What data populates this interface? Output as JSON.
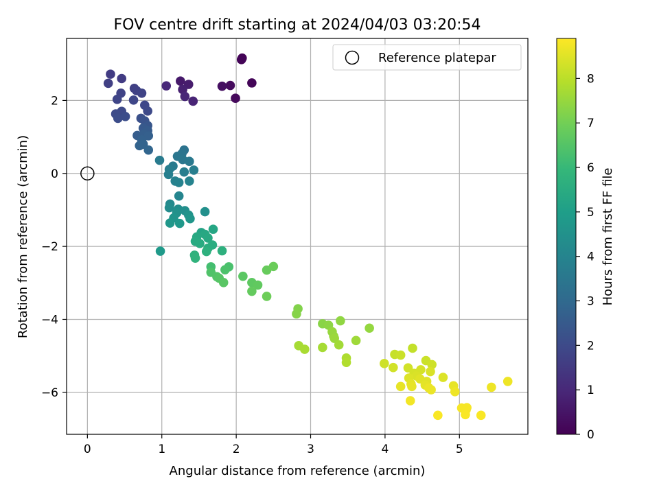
{
  "chart_data": {
    "type": "scatter",
    "title": "FOV centre drift starting at 2024/04/03 03:20:54",
    "xlabel": "Angular distance from reference (arcmin)",
    "ylabel": "Rotation from reference (arcmin)",
    "xlim": [
      -0.28,
      5.92
    ],
    "ylim": [
      -7.15,
      3.7
    ],
    "xticks": [
      0,
      1,
      2,
      3,
      4,
      5
    ],
    "yticks": [
      -6,
      -4,
      -2,
      0,
      2
    ],
    "xtick_labels": [
      "0",
      "1",
      "2",
      "3",
      "4",
      "5"
    ],
    "ytick_labels": [
      "−6",
      "−4",
      "−2",
      "0",
      "2"
    ],
    "grid": true,
    "legend": {
      "location": "top-right",
      "label": "Reference platepar"
    },
    "reference_point": {
      "x": 0,
      "y": 0
    },
    "colorbar": {
      "label": "Hours from first FF file",
      "colormap": "viridis",
      "min": 0,
      "max": 8.9,
      "ticks": [
        0,
        1,
        2,
        3,
        4,
        5,
        6,
        7,
        8
      ],
      "tick_labels": [
        "0",
        "1",
        "2",
        "3",
        "4",
        "5",
        "6",
        "7",
        "8"
      ]
    },
    "points": [
      {
        "x": 2.08,
        "y": 3.16,
        "c": 0.05
      },
      {
        "x": 2.07,
        "y": 3.12,
        "c": 0.08
      },
      {
        "x": 2.21,
        "y": 2.48,
        "c": 0.12
      },
      {
        "x": 1.99,
        "y": 2.06,
        "c": 0.2
      },
      {
        "x": 1.92,
        "y": 2.41,
        "c": 0.25
      },
      {
        "x": 1.81,
        "y": 2.39,
        "c": 0.35
      },
      {
        "x": 1.25,
        "y": 2.53,
        "c": 0.6
      },
      {
        "x": 1.36,
        "y": 2.44,
        "c": 0.7
      },
      {
        "x": 1.28,
        "y": 2.3,
        "c": 0.8
      },
      {
        "x": 1.42,
        "y": 1.98,
        "c": 0.9
      },
      {
        "x": 1.31,
        "y": 2.11,
        "c": 0.95
      },
      {
        "x": 1.06,
        "y": 2.4,
        "c": 1.0
      },
      {
        "x": 0.31,
        "y": 2.72,
        "c": 1.6
      },
      {
        "x": 0.46,
        "y": 2.6,
        "c": 1.6
      },
      {
        "x": 0.28,
        "y": 2.47,
        "c": 1.7
      },
      {
        "x": 0.63,
        "y": 2.33,
        "c": 1.7
      },
      {
        "x": 0.66,
        "y": 2.27,
        "c": 1.75
      },
      {
        "x": 0.45,
        "y": 2.2,
        "c": 1.8
      },
      {
        "x": 0.73,
        "y": 2.2,
        "c": 1.8
      },
      {
        "x": 0.4,
        "y": 2.03,
        "c": 1.85
      },
      {
        "x": 0.62,
        "y": 2.01,
        "c": 1.9
      },
      {
        "x": 0.77,
        "y": 1.87,
        "c": 1.95
      },
      {
        "x": 0.81,
        "y": 1.71,
        "c": 2.0
      },
      {
        "x": 0.46,
        "y": 1.7,
        "c": 2.0
      },
      {
        "x": 0.38,
        "y": 1.63,
        "c": 2.05
      },
      {
        "x": 0.51,
        "y": 1.56,
        "c": 2.1
      },
      {
        "x": 0.41,
        "y": 1.51,
        "c": 2.1
      },
      {
        "x": 0.72,
        "y": 1.51,
        "c": 2.2
      },
      {
        "x": 0.77,
        "y": 1.44,
        "c": 2.3
      },
      {
        "x": 0.81,
        "y": 1.31,
        "c": 2.4
      },
      {
        "x": 0.75,
        "y": 1.24,
        "c": 2.5
      },
      {
        "x": 0.81,
        "y": 1.17,
        "c": 2.55
      },
      {
        "x": 0.67,
        "y": 1.04,
        "c": 2.6
      },
      {
        "x": 0.76,
        "y": 1.08,
        "c": 2.65
      },
      {
        "x": 0.82,
        "y": 1.03,
        "c": 2.7
      },
      {
        "x": 0.73,
        "y": 0.92,
        "c": 2.75
      },
      {
        "x": 0.7,
        "y": 0.76,
        "c": 2.8
      },
      {
        "x": 0.75,
        "y": 0.8,
        "c": 2.85
      },
      {
        "x": 0.82,
        "y": 0.64,
        "c": 2.9
      },
      {
        "x": 1.3,
        "y": 0.64,
        "c": 3.4
      },
      {
        "x": 1.27,
        "y": 0.54,
        "c": 3.45
      },
      {
        "x": 1.21,
        "y": 0.47,
        "c": 3.5
      },
      {
        "x": 1.28,
        "y": 0.38,
        "c": 3.55
      },
      {
        "x": 1.37,
        "y": 0.33,
        "c": 3.6
      },
      {
        "x": 1.15,
        "y": 0.2,
        "c": 3.65
      },
      {
        "x": 0.97,
        "y": 0.36,
        "c": 3.7
      },
      {
        "x": 1.1,
        "y": 0.11,
        "c": 3.75
      },
      {
        "x": 1.43,
        "y": 0.09,
        "c": 3.8
      },
      {
        "x": 1.3,
        "y": 0.04,
        "c": 3.8
      },
      {
        "x": 1.09,
        "y": -0.03,
        "c": 3.85
      },
      {
        "x": 1.18,
        "y": -0.21,
        "c": 3.9
      },
      {
        "x": 1.23,
        "y": -0.25,
        "c": 3.95
      },
      {
        "x": 1.37,
        "y": -0.21,
        "c": 4.0
      },
      {
        "x": 1.23,
        "y": -0.62,
        "c": 4.05
      },
      {
        "x": 1.11,
        "y": -0.84,
        "c": 4.2
      },
      {
        "x": 1.1,
        "y": -0.94,
        "c": 4.3
      },
      {
        "x": 1.22,
        "y": -0.98,
        "c": 4.35
      },
      {
        "x": 1.31,
        "y": -1.02,
        "c": 4.4
      },
      {
        "x": 1.58,
        "y": -1.05,
        "c": 4.45
      },
      {
        "x": 1.2,
        "y": -1.08,
        "c": 4.5
      },
      {
        "x": 1.36,
        "y": -1.14,
        "c": 4.55
      },
      {
        "x": 1.16,
        "y": -1.22,
        "c": 4.6
      },
      {
        "x": 1.38,
        "y": -1.24,
        "c": 4.65
      },
      {
        "x": 1.11,
        "y": -1.36,
        "c": 4.7
      },
      {
        "x": 1.24,
        "y": -1.37,
        "c": 4.75
      },
      {
        "x": 0.98,
        "y": -2.13,
        "c": 4.8
      },
      {
        "x": 1.53,
        "y": -1.62,
        "c": 5.2
      },
      {
        "x": 1.69,
        "y": -1.53,
        "c": 5.25
      },
      {
        "x": 1.58,
        "y": -1.67,
        "c": 5.3
      },
      {
        "x": 1.47,
        "y": -1.74,
        "c": 5.35
      },
      {
        "x": 1.62,
        "y": -1.77,
        "c": 5.35
      },
      {
        "x": 1.45,
        "y": -1.86,
        "c": 5.4
      },
      {
        "x": 1.51,
        "y": -1.92,
        "c": 5.45
      },
      {
        "x": 1.68,
        "y": -1.96,
        "c": 5.5
      },
      {
        "x": 1.62,
        "y": -2.05,
        "c": 5.55
      },
      {
        "x": 1.81,
        "y": -2.12,
        "c": 5.6
      },
      {
        "x": 1.6,
        "y": -2.14,
        "c": 5.65
      },
      {
        "x": 1.44,
        "y": -2.24,
        "c": 5.7
      },
      {
        "x": 1.45,
        "y": -2.32,
        "c": 5.75
      },
      {
        "x": 1.66,
        "y": -2.56,
        "c": 6.2
      },
      {
        "x": 1.9,
        "y": -2.56,
        "c": 6.3
      },
      {
        "x": 1.85,
        "y": -2.64,
        "c": 6.35
      },
      {
        "x": 1.66,
        "y": -2.71,
        "c": 6.4
      },
      {
        "x": 1.74,
        "y": -2.83,
        "c": 6.45
      },
      {
        "x": 1.77,
        "y": -2.87,
        "c": 6.5
      },
      {
        "x": 1.83,
        "y": -2.99,
        "c": 6.55
      },
      {
        "x": 2.09,
        "y": -2.82,
        "c": 6.6
      },
      {
        "x": 2.21,
        "y": -2.99,
        "c": 6.65
      },
      {
        "x": 2.29,
        "y": -3.06,
        "c": 6.7
      },
      {
        "x": 2.21,
        "y": -3.23,
        "c": 6.75
      },
      {
        "x": 2.41,
        "y": -2.65,
        "c": 6.8
      },
      {
        "x": 2.5,
        "y": -2.55,
        "c": 6.85
      },
      {
        "x": 2.41,
        "y": -3.37,
        "c": 6.9
      },
      {
        "x": 2.83,
        "y": -3.71,
        "c": 7.2
      },
      {
        "x": 2.81,
        "y": -3.85,
        "c": 7.25
      },
      {
        "x": 3.16,
        "y": -4.12,
        "c": 7.3
      },
      {
        "x": 3.24,
        "y": -4.16,
        "c": 7.35
      },
      {
        "x": 3.4,
        "y": -4.04,
        "c": 7.4
      },
      {
        "x": 3.79,
        "y": -4.24,
        "c": 7.45
      },
      {
        "x": 3.29,
        "y": -4.34,
        "c": 7.5
      },
      {
        "x": 3.31,
        "y": -4.46,
        "c": 7.5
      },
      {
        "x": 3.32,
        "y": -4.52,
        "c": 7.55
      },
      {
        "x": 3.61,
        "y": -4.58,
        "c": 7.6
      },
      {
        "x": 3.38,
        "y": -4.7,
        "c": 7.65
      },
      {
        "x": 2.84,
        "y": -4.72,
        "c": 7.7
      },
      {
        "x": 3.16,
        "y": -4.77,
        "c": 7.7
      },
      {
        "x": 2.92,
        "y": -4.82,
        "c": 7.75
      },
      {
        "x": 3.48,
        "y": -5.06,
        "c": 7.8
      },
      {
        "x": 3.48,
        "y": -5.18,
        "c": 7.85
      },
      {
        "x": 4.37,
        "y": -4.79,
        "c": 8.1
      },
      {
        "x": 4.13,
        "y": -4.96,
        "c": 8.15
      },
      {
        "x": 4.21,
        "y": -4.98,
        "c": 8.2
      },
      {
        "x": 4.55,
        "y": -5.13,
        "c": 8.2
      },
      {
        "x": 3.99,
        "y": -5.21,
        "c": 8.25
      },
      {
        "x": 4.63,
        "y": -5.24,
        "c": 8.25
      },
      {
        "x": 4.11,
        "y": -5.32,
        "c": 8.3
      },
      {
        "x": 4.31,
        "y": -5.33,
        "c": 8.3
      },
      {
        "x": 4.48,
        "y": -5.38,
        "c": 8.35
      },
      {
        "x": 4.39,
        "y": -5.48,
        "c": 8.35
      },
      {
        "x": 4.61,
        "y": -5.43,
        "c": 8.4
      },
      {
        "x": 4.42,
        "y": -5.55,
        "c": 8.4
      },
      {
        "x": 4.78,
        "y": -5.59,
        "c": 8.45
      },
      {
        "x": 4.32,
        "y": -5.61,
        "c": 8.45
      },
      {
        "x": 4.47,
        "y": -5.63,
        "c": 8.5
      },
      {
        "x": 4.56,
        "y": -5.7,
        "c": 8.5
      },
      {
        "x": 4.35,
        "y": -5.77,
        "c": 8.55
      },
      {
        "x": 4.54,
        "y": -5.8,
        "c": 8.55
      },
      {
        "x": 4.21,
        "y": -5.84,
        "c": 8.6
      },
      {
        "x": 4.36,
        "y": -5.84,
        "c": 8.6
      },
      {
        "x": 4.92,
        "y": -5.82,
        "c": 8.6
      },
      {
        "x": 4.59,
        "y": -5.88,
        "c": 8.65
      },
      {
        "x": 4.62,
        "y": -5.93,
        "c": 8.65
      },
      {
        "x": 4.94,
        "y": -5.98,
        "c": 8.7
      },
      {
        "x": 5.65,
        "y": -5.7,
        "c": 8.7
      },
      {
        "x": 5.43,
        "y": -5.86,
        "c": 8.7
      },
      {
        "x": 4.34,
        "y": -6.23,
        "c": 8.75
      },
      {
        "x": 5.03,
        "y": -6.43,
        "c": 8.8
      },
      {
        "x": 5.1,
        "y": -6.42,
        "c": 8.8
      },
      {
        "x": 5.09,
        "y": -6.48,
        "c": 8.8
      },
      {
        "x": 4.71,
        "y": -6.63,
        "c": 8.85
      },
      {
        "x": 5.08,
        "y": -6.61,
        "c": 8.85
      },
      {
        "x": 5.29,
        "y": -6.63,
        "c": 8.85
      }
    ]
  }
}
